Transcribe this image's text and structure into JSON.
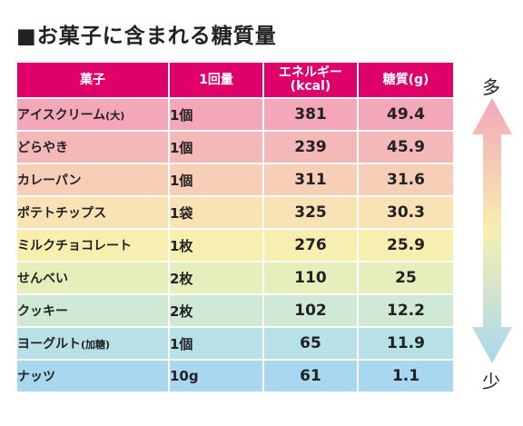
{
  "title": "■お菓子に含まれる糖質量",
  "headers": {
    "name": "菓子",
    "qty": "1回量",
    "kcal_line1": "エネルギー",
    "kcal_line2": "(kcal)",
    "sugar": "糖質(g)"
  },
  "rows": [
    {
      "name": "アイスクリーム",
      "sub": "(大)",
      "qty": "1個",
      "kcal": "381",
      "sugar": "49.4",
      "color": "#f3a7b9"
    },
    {
      "name": "どらやき",
      "sub": "",
      "qty": "1個",
      "kcal": "239",
      "sugar": "45.9",
      "color": "#f5b8b8"
    },
    {
      "name": "カレーパン",
      "sub": "",
      "qty": "1個",
      "kcal": "311",
      "sugar": "31.6",
      "color": "#f7cfb7"
    },
    {
      "name": "ポテトチップス",
      "sub": "",
      "qty": "1袋",
      "kcal": "325",
      "sugar": "30.3",
      "color": "#f9e3b5"
    },
    {
      "name": "ミルクチョコレート",
      "sub": "",
      "qty": "1枚",
      "kcal": "276",
      "sugar": "25.9",
      "color": "#f6efb0"
    },
    {
      "name": "せんべい",
      "sub": "",
      "qty": "2枚",
      "kcal": "110",
      "sugar": "25",
      "color": "#e4efbc"
    },
    {
      "name": "クッキー",
      "sub": "",
      "qty": "2枚",
      "kcal": "102",
      "sugar": "12.2",
      "color": "#cfe9d5"
    },
    {
      "name": "ヨーグルト",
      "sub": "(加糖)",
      "qty": "1個",
      "kcal": "65",
      "sugar": "11.9",
      "color": "#b7e1e6"
    },
    {
      "name": "ナッツ",
      "sub": "",
      "qty": "10g",
      "kcal": "61",
      "sugar": "1.1",
      "color": "#a9d7ef"
    }
  ],
  "scale": {
    "top": "多",
    "bottom": "少",
    "arrow_top_color": "#f3a7b9",
    "arrow_mid_color": "#f6efb0",
    "arrow_bottom_color": "#a9d7ef"
  },
  "colors": {
    "header_bg": "#e0006a"
  }
}
